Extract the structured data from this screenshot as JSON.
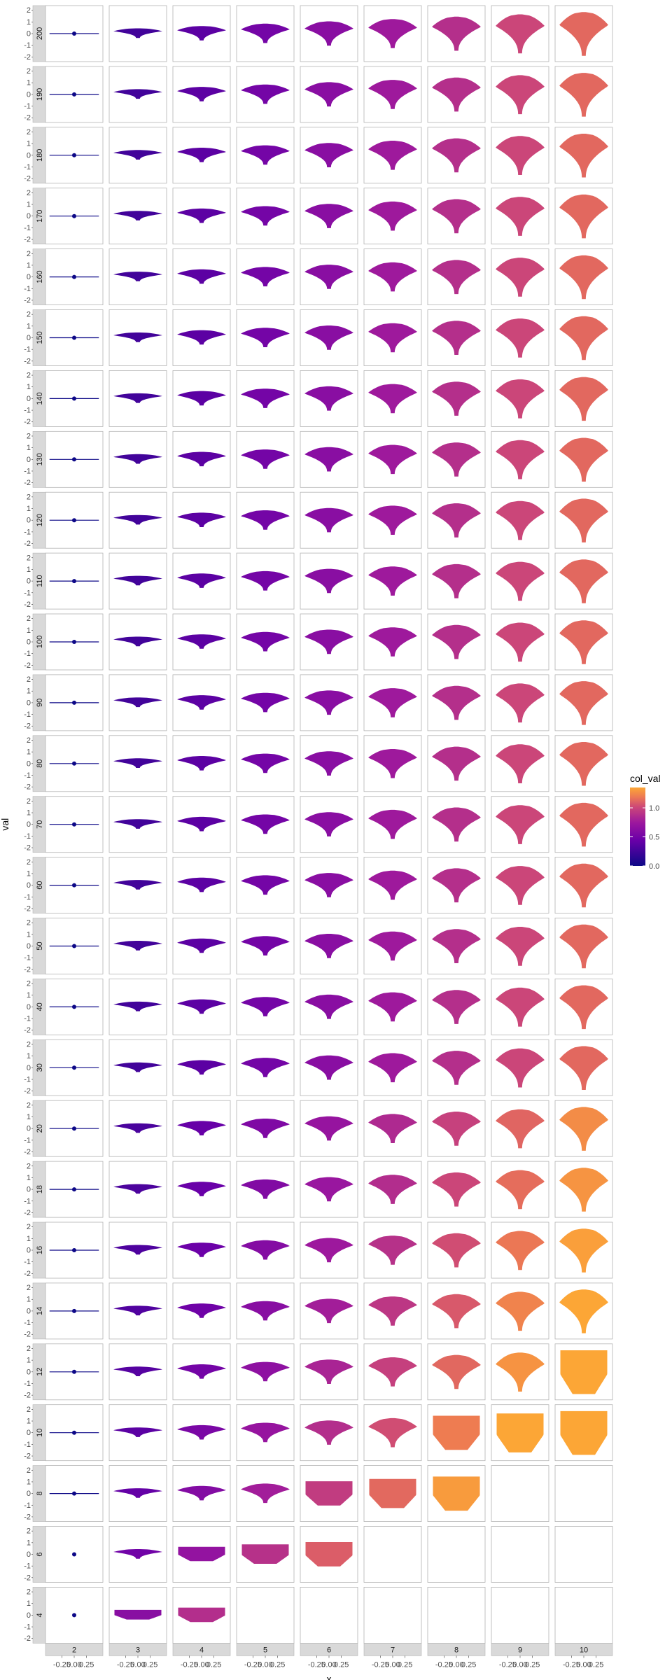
{
  "chart_data": {
    "type": "violin",
    "facet_layout": "grid",
    "col_facets": [
      "2",
      "3",
      "4",
      "5",
      "6",
      "7",
      "8",
      "9",
      "10"
    ],
    "row_facets": [
      "200",
      "190",
      "180",
      "170",
      "160",
      "150",
      "140",
      "130",
      "120",
      "110",
      "100",
      "90",
      "80",
      "70",
      "60",
      "50",
      "40",
      "30",
      "20",
      "18",
      "16",
      "14",
      "12",
      "10",
      "8",
      "6",
      "4"
    ],
    "xlabel": "x",
    "ylabel": "val",
    "x_ticks": [
      "-0.25",
      "0.00",
      "0.25"
    ],
    "y_ticks": [
      "-2",
      "-1",
      "0",
      "1",
      "2"
    ],
    "ylim": [
      -2.4,
      2.4
    ],
    "xlim": [
      -0.5,
      0.5
    ],
    "legend": {
      "title": "col_val",
      "ticks": [
        "0.0",
        "0.5",
        "1.0"
      ],
      "range": [
        0,
        1.35
      ],
      "low_color": "#0d0887",
      "mid_color": "#9c179e",
      "high_color": "#fca636",
      "placement": "right"
    },
    "strip_fill": "#d9d9d9",
    "panel_border": "#b3b3b3"
  }
}
